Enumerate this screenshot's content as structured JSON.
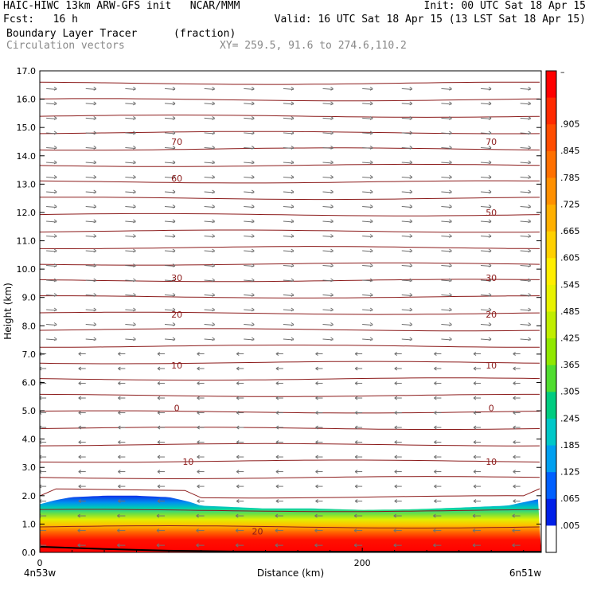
{
  "header": {
    "line1_left": "HAIC-HIWC 13km ARW-GFS init   NCAR/MMM",
    "line1_right": "Init: 00 UTC Sat 18 Apr 15",
    "line2_left": "Fcst:   16 h",
    "line2_right": "Valid: 16 UTC Sat 18 Apr 15 (13 LST Sat 18 Apr 15)",
    "field_name": "Boundary Layer Tracer",
    "field_units": "(fraction)",
    "vector_label": "Circulation vectors",
    "xy_label": "XY= 259.5, 91.6 to 274.6,110.2"
  },
  "chart_data": {
    "type": "heatmap",
    "xlabel": "Distance (km)",
    "ylabel": "Height (km)",
    "xlim": [
      0,
      311
    ],
    "ylim": [
      0,
      17
    ],
    "x_ticks": [
      0,
      200
    ],
    "x_end_labels": [
      "4n53w",
      "6n51w"
    ],
    "y_ticks": [
      "0.0",
      "1.0",
      "2.0",
      "3.0",
      "4.0",
      "5.0",
      "6.0",
      "7.0",
      "8.0",
      "9.0",
      "10.0",
      "11.0",
      "12.0",
      "13.0",
      "14.0",
      "15.0",
      "16.0",
      "17.0"
    ],
    "colorbar": {
      "labels": [
        "–",
        ".905",
        ".845",
        ".785",
        ".725",
        ".665",
        ".605",
        ".545",
        ".485",
        ".425",
        ".365",
        ".305",
        ".245",
        ".185",
        ".125",
        ".065",
        ".005"
      ],
      "colors": [
        "#ff0000",
        "#ff2a00",
        "#ff4d00",
        "#ff7000",
        "#ff9000",
        "#ffb000",
        "#ffd000",
        "#ffee00",
        "#e8f200",
        "#c0ee00",
        "#90e800",
        "#50dd30",
        "#00cc80",
        "#00c8c8",
        "#00a0f0",
        "#0060ff",
        "#0020e8",
        "#ffffff"
      ]
    },
    "bl_top_km": [
      [
        0,
        1.7
      ],
      [
        10,
        1.85
      ],
      [
        20,
        1.95
      ],
      [
        40,
        2.0
      ],
      [
        60,
        2.0
      ],
      [
        80,
        1.95
      ],
      [
        92,
        1.8
      ],
      [
        100,
        1.65
      ],
      [
        140,
        1.55
      ],
      [
        170,
        1.55
      ],
      [
        200,
        1.5
      ],
      [
        230,
        1.52
      ],
      [
        260,
        1.58
      ],
      [
        290,
        1.65
      ],
      [
        311,
        1.9
      ]
    ],
    "isotherm_labels": [
      {
        "label": "70",
        "x": [
          85,
          280
        ],
        "z": 14.5
      },
      {
        "label": "60",
        "x": [
          85
        ],
        "z": 13.2
      },
      {
        "label": "50",
        "x": [
          280
        ],
        "z": 12.0
      },
      {
        "label": "30",
        "x": [
          85,
          280
        ],
        "z": 9.7
      },
      {
        "label": "20",
        "x": [
          85,
          280
        ],
        "z": 8.4
      },
      {
        "label": "10",
        "x": [
          85,
          280
        ],
        "z": 6.6
      },
      {
        "label": "0",
        "x": [
          85,
          280
        ],
        "z": 5.1
      },
      {
        "label": "10",
        "x": [
          92,
          280
        ],
        "z": 3.2
      },
      {
        "label": "20",
        "x": [
          135
        ],
        "z": 0.75
      }
    ],
    "wind_u_direction_by_height": [
      {
        "z_min": 0.0,
        "z_max": 1.8,
        "u": -1
      },
      {
        "z_min": 1.8,
        "z_max": 7.5,
        "u": -1
      },
      {
        "z_min": 7.5,
        "z_max": 17.0,
        "u": 1
      }
    ]
  }
}
